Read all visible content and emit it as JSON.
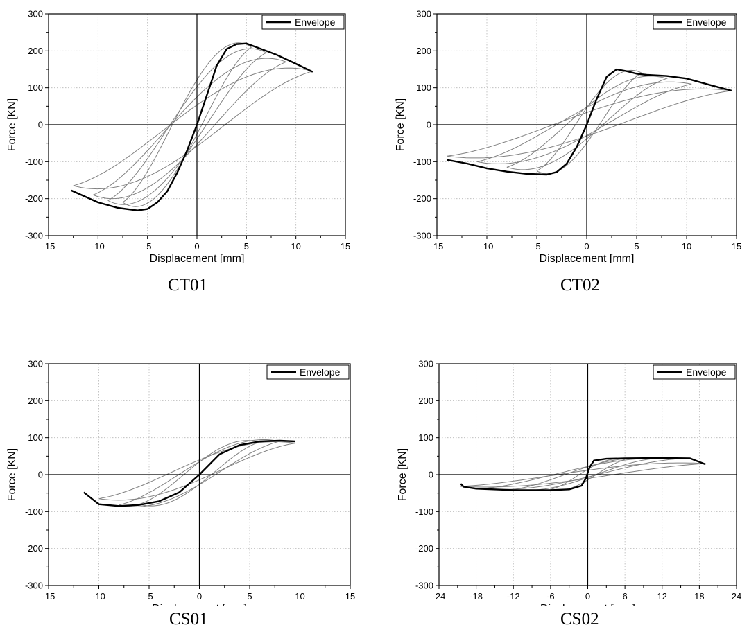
{
  "chart_data": [
    {
      "type": "line",
      "caption": "CT01",
      "xlabel": "Displacement [mm]",
      "ylabel": "Force [KN]",
      "xlim": [
        -15,
        15
      ],
      "ylim": [
        -300,
        300
      ],
      "xticks": [
        -15,
        -10,
        -5,
        0,
        5,
        10,
        15
      ],
      "yticks": [
        -300,
        -200,
        -100,
        0,
        100,
        200,
        300
      ],
      "grid": true,
      "legend_position": "top-right",
      "series": [
        {
          "name": "Envelope",
          "color": "#000000",
          "x": [
            -12.7,
            -10,
            -8,
            -6,
            -5,
            -4,
            -3,
            -2,
            -1,
            0,
            1,
            2,
            3,
            4,
            5,
            6,
            8,
            10,
            11.7
          ],
          "y": [
            -178,
            -210,
            -225,
            -232,
            -228,
            -210,
            -180,
            -130,
            -70,
            0,
            80,
            160,
            205,
            218,
            220,
            210,
            190,
            165,
            143
          ]
        }
      ],
      "loops_color": "#808080",
      "loops": [
        {
          "xmin": -7.5,
          "xmax": 5.5,
          "fmin": -210,
          "fmax": 210
        },
        {
          "xmin": -9,
          "xmax": 7,
          "fmin": -205,
          "fmax": 195
        },
        {
          "xmin": -10.5,
          "xmax": 9,
          "fmin": -190,
          "fmax": 170
        },
        {
          "xmin": -12.5,
          "xmax": 11.7,
          "fmin": -165,
          "fmax": 145
        }
      ]
    },
    {
      "type": "line",
      "caption": "CT02",
      "xlabel": "Displacement [mm]",
      "ylabel": "Force [KN]",
      "xlim": [
        -15,
        15
      ],
      "ylim": [
        -300,
        300
      ],
      "xticks": [
        -15,
        -10,
        -5,
        0,
        5,
        10,
        15
      ],
      "yticks": [
        -300,
        -200,
        -100,
        0,
        100,
        200,
        300
      ],
      "grid": true,
      "legend_position": "top-right",
      "series": [
        {
          "name": "Envelope",
          "color": "#000000",
          "x": [
            -14,
            -12,
            -10,
            -8,
            -6,
            -4,
            -3,
            -2,
            -1,
            0,
            1,
            2,
            3,
            4,
            5,
            6,
            8,
            10,
            12,
            14.5
          ],
          "y": [
            -95,
            -105,
            -118,
            -127,
            -133,
            -135,
            -128,
            -105,
            -60,
            0,
            70,
            130,
            150,
            145,
            138,
            135,
            132,
            125,
            110,
            92
          ]
        }
      ],
      "loops_color": "#808080",
      "loops": [
        {
          "xmin": -5,
          "xmax": 5.5,
          "fmin": -125,
          "fmax": 140
        },
        {
          "xmin": -8,
          "xmax": 8,
          "fmin": -115,
          "fmax": 125
        },
        {
          "xmin": -11,
          "xmax": 10.5,
          "fmin": -100,
          "fmax": 110
        },
        {
          "xmin": -14,
          "xmax": 14.5,
          "fmin": -85,
          "fmax": 92
        }
      ]
    },
    {
      "type": "line",
      "caption": "CS01",
      "xlabel": "Displacement [mm]",
      "ylabel": "Force [KN]",
      "xlim": [
        -15,
        15
      ],
      "ylim": [
        -300,
        300
      ],
      "xticks": [
        -15,
        -10,
        -5,
        0,
        5,
        10,
        15
      ],
      "yticks": [
        -300,
        -200,
        -100,
        0,
        100,
        200,
        300
      ],
      "grid": true,
      "legend_position": "top-right",
      "series": [
        {
          "name": "Envelope",
          "color": "#000000",
          "x": [
            -11.5,
            -10,
            -8,
            -6,
            -4,
            -2,
            0,
            2,
            4,
            6,
            8,
            9.5
          ],
          "y": [
            -48,
            -80,
            -85,
            -82,
            -72,
            -48,
            0,
            55,
            80,
            90,
            92,
            90
          ]
        }
      ],
      "loops_color": "#808080",
      "loops": [
        {
          "xmin": -6,
          "xmax": 6,
          "fmin": -80,
          "fmax": 88
        },
        {
          "xmin": -8,
          "xmax": 8,
          "fmin": -82,
          "fmax": 90
        },
        {
          "xmin": -10,
          "xmax": 9.5,
          "fmin": -65,
          "fmax": 85
        }
      ]
    },
    {
      "type": "line",
      "caption": "CS02",
      "xlabel": "Displacement [mm]",
      "ylabel": "Force [KN]",
      "xlim": [
        -24,
        24
      ],
      "ylim": [
        -300,
        300
      ],
      "xticks": [
        -24,
        -18,
        -12,
        -6,
        0,
        6,
        12,
        18,
        24
      ],
      "yticks": [
        -300,
        -200,
        -100,
        0,
        100,
        200,
        300
      ],
      "grid": true,
      "legend_position": "top-right",
      "series": [
        {
          "name": "Envelope",
          "color": "#000000",
          "x": [
            -20.5,
            -20,
            -18,
            -12,
            -6,
            -3,
            -1,
            -0.3,
            0.3,
            1,
            3,
            6,
            12,
            16.5,
            19
          ],
          "y": [
            -25,
            -33,
            -38,
            -42,
            -42,
            -40,
            -30,
            -10,
            20,
            38,
            43,
            44,
            45,
            44,
            28
          ]
        }
      ],
      "loops_color": "#808080",
      "loops": [
        {
          "xmin": -6,
          "xmax": 6,
          "fmin": -40,
          "fmax": 40
        },
        {
          "xmin": -12,
          "xmax": 10,
          "fmin": -40,
          "fmax": 42
        },
        {
          "xmin": -17,
          "xmax": 14,
          "fmin": -38,
          "fmax": 42
        },
        {
          "xmin": -20.5,
          "xmax": 19,
          "fmin": -32,
          "fmax": 30
        }
      ]
    }
  ]
}
